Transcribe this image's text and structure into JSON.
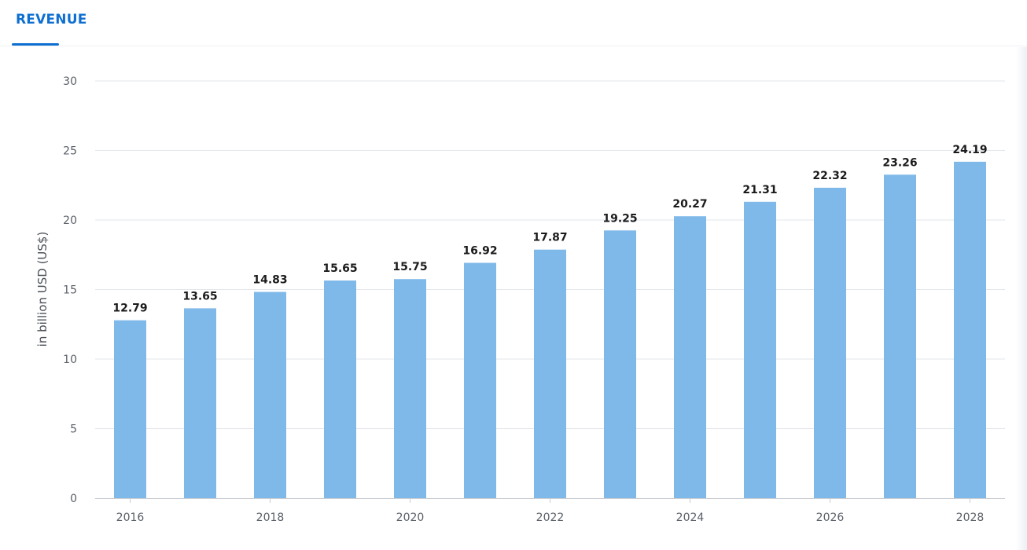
{
  "tabs": [
    {
      "label": "REVENUE",
      "active": true
    }
  ],
  "colors": {
    "accent": "#0f6fd1",
    "bar": "#7fb9e9",
    "grid": "#e3e6ea",
    "axis": "#c9cdd2"
  },
  "chart_data": {
    "type": "bar",
    "categories": [
      "2016",
      "2017",
      "2018",
      "2019",
      "2020",
      "2021",
      "2022",
      "2023",
      "2024",
      "2025",
      "2026",
      "2027",
      "2028"
    ],
    "values": [
      12.79,
      13.65,
      14.83,
      15.65,
      15.75,
      16.92,
      17.87,
      19.25,
      20.27,
      21.31,
      22.32,
      23.26,
      24.19
    ],
    "value_labels": [
      "12.79",
      "13.65",
      "14.83",
      "15.65",
      "15.75",
      "16.92",
      "17.87",
      "19.25",
      "20.27",
      "21.31",
      "22.32",
      "23.26",
      "24.19"
    ],
    "x_tick_labels": [
      "2016",
      "2018",
      "2020",
      "2022",
      "2024",
      "2026",
      "2028"
    ],
    "y_ticks": [
      0,
      5,
      10,
      15,
      20,
      25,
      30
    ],
    "title": "",
    "xlabel": "",
    "ylabel": "in billion USD (US$)",
    "ylim": [
      0,
      30
    ],
    "grid": true,
    "data_labels": true
  }
}
